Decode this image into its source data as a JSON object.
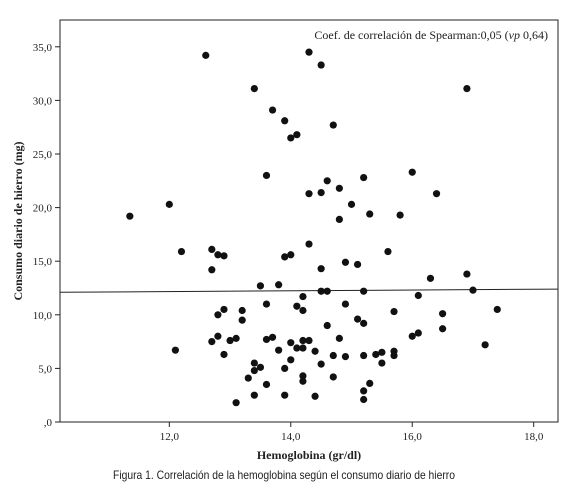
{
  "caption": "Figura 1. Correlación de la hemoglobina según el consumo diario de hierro",
  "chart_data": {
    "type": "scatter",
    "xlabel": "Hemoglobina (gr/dl)",
    "ylabel": "Consumo diario de hierro (mg)",
    "annotation": {
      "prefix": "Coef. de correlación de Spearman:0,05 (",
      "italic": "vp",
      "suffix": " 0,64)"
    },
    "xlim": [
      10.2,
      18.4
    ],
    "ylim": [
      0,
      37.5
    ],
    "x_ticks": [
      12.0,
      14.0,
      16.0,
      18.0
    ],
    "x_tick_labels": [
      "12,0",
      "14,0",
      "16,0",
      "18,0"
    ],
    "y_ticks": [
      0,
      5,
      10,
      15,
      20,
      25,
      30,
      35
    ],
    "y_tick_labels": [
      ",0",
      "5,0",
      "10,0",
      "15,0",
      "20,0",
      "25,0",
      "30,0",
      "35,0"
    ],
    "grid": false,
    "fit_line": {
      "x": [
        10.2,
        18.4
      ],
      "y": [
        12.1,
        12.4
      ]
    },
    "points": [
      [
        11.35,
        19.2
      ],
      [
        12.0,
        20.3
      ],
      [
        12.1,
        6.7
      ],
      [
        12.2,
        15.9
      ],
      [
        12.6,
        34.2
      ],
      [
        12.7,
        16.1
      ],
      [
        12.7,
        14.2
      ],
      [
        12.7,
        7.5
      ],
      [
        12.8,
        15.6
      ],
      [
        12.8,
        10.0
      ],
      [
        12.8,
        8.0
      ],
      [
        12.9,
        15.5
      ],
      [
        12.9,
        10.5
      ],
      [
        12.9,
        6.3
      ],
      [
        13.0,
        7.6
      ],
      [
        13.1,
        7.8
      ],
      [
        13.1,
        1.8
      ],
      [
        13.2,
        10.4
      ],
      [
        13.2,
        9.5
      ],
      [
        13.3,
        4.1
      ],
      [
        13.4,
        31.1
      ],
      [
        13.4,
        5.5
      ],
      [
        13.4,
        4.8
      ],
      [
        13.4,
        2.5
      ],
      [
        13.5,
        5.1
      ],
      [
        13.5,
        12.7
      ],
      [
        13.6,
        23.0
      ],
      [
        13.6,
        11.0
      ],
      [
        13.6,
        7.7
      ],
      [
        13.6,
        3.5
      ],
      [
        13.7,
        29.1
      ],
      [
        13.7,
        7.9
      ],
      [
        13.8,
        12.8
      ],
      [
        13.8,
        6.7
      ],
      [
        13.9,
        28.1
      ],
      [
        13.9,
        15.4
      ],
      [
        13.9,
        5.0
      ],
      [
        13.9,
        2.5
      ],
      [
        14.0,
        26.5
      ],
      [
        14.0,
        15.6
      ],
      [
        14.0,
        7.4
      ],
      [
        14.0,
        5.8
      ],
      [
        14.1,
        26.8
      ],
      [
        14.1,
        10.8
      ],
      [
        14.1,
        6.9
      ],
      [
        14.2,
        11.7
      ],
      [
        14.2,
        10.4
      ],
      [
        14.2,
        7.6
      ],
      [
        14.2,
        6.9
      ],
      [
        14.2,
        4.3
      ],
      [
        14.2,
        3.8
      ],
      [
        14.3,
        34.5
      ],
      [
        14.3,
        21.3
      ],
      [
        14.3,
        16.6
      ],
      [
        14.3,
        7.6
      ],
      [
        14.4,
        6.6
      ],
      [
        14.4,
        2.4
      ],
      [
        14.5,
        33.3
      ],
      [
        14.5,
        21.4
      ],
      [
        14.5,
        14.3
      ],
      [
        14.5,
        12.2
      ],
      [
        14.5,
        5.4
      ],
      [
        14.6,
        22.5
      ],
      [
        14.6,
        12.2
      ],
      [
        14.6,
        9.0
      ],
      [
        14.7,
        27.7
      ],
      [
        14.7,
        6.2
      ],
      [
        14.7,
        4.2
      ],
      [
        14.8,
        21.8
      ],
      [
        14.8,
        18.9
      ],
      [
        14.8,
        7.8
      ],
      [
        14.9,
        14.9
      ],
      [
        14.9,
        6.1
      ],
      [
        14.9,
        11.0
      ],
      [
        15.0,
        20.3
      ],
      [
        15.1,
        14.7
      ],
      [
        15.1,
        9.6
      ],
      [
        15.2,
        22.8
      ],
      [
        15.2,
        12.2
      ],
      [
        15.2,
        9.2
      ],
      [
        15.2,
        6.2
      ],
      [
        15.2,
        2.9
      ],
      [
        15.2,
        2.1
      ],
      [
        15.3,
        19.4
      ],
      [
        15.3,
        3.6
      ],
      [
        15.4,
        6.3
      ],
      [
        15.5,
        6.5
      ],
      [
        15.5,
        5.5
      ],
      [
        15.6,
        15.9
      ],
      [
        15.7,
        10.3
      ],
      [
        15.7,
        6.6
      ],
      [
        15.7,
        6.2
      ],
      [
        15.8,
        19.3
      ],
      [
        16.0,
        23.3
      ],
      [
        16.0,
        8.0
      ],
      [
        16.1,
        11.8
      ],
      [
        16.1,
        8.3
      ],
      [
        16.3,
        13.4
      ],
      [
        16.4,
        21.3
      ],
      [
        16.5,
        10.1
      ],
      [
        16.5,
        8.7
      ],
      [
        16.9,
        31.1
      ],
      [
        16.9,
        13.8
      ],
      [
        17.0,
        12.3
      ],
      [
        17.2,
        7.2
      ],
      [
        17.4,
        10.5
      ]
    ]
  }
}
